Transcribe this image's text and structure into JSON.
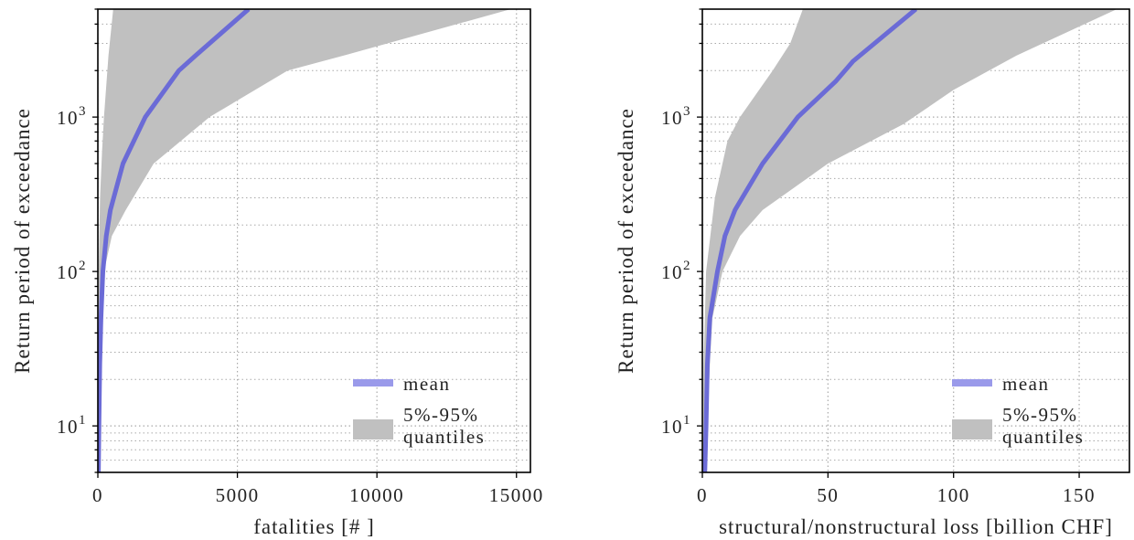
{
  "colors": {
    "mean_line": "#6b6bd6",
    "legend_mean": "#9a9aea",
    "quantile_band": "#c0c0c0"
  },
  "chart_data": [
    {
      "type": "area",
      "title": "",
      "xlabel": "fatalities [# ]",
      "ylabel": "Return period of exceedance",
      "xlim": [
        0,
        15500
      ],
      "ylim": [
        5,
        5000
      ],
      "yscale": "log",
      "grid": true,
      "legend_position": "lower-right",
      "x_ticks": [
        0,
        5000,
        10000,
        15000
      ],
      "x_tick_labels": [
        "0",
        "5000",
        "10000",
        "15000"
      ],
      "y_ticks": [
        10,
        100,
        1000
      ],
      "y_tick_labels": [
        "10",
        "10",
        "10"
      ],
      "y_tick_exponents": [
        "1",
        "2",
        "3"
      ],
      "series": [
        {
          "name": "mean",
          "kind": "line",
          "points": [
            [
              20,
              5
            ],
            [
              40,
              10
            ],
            [
              70,
              25
            ],
            [
              110,
              50
            ],
            [
              180,
              100
            ],
            [
              300,
              170
            ],
            [
              450,
              250
            ],
            [
              900,
              500
            ],
            [
              1700,
              1000
            ],
            [
              2900,
              2000
            ],
            [
              3500,
              2500
            ],
            [
              5400,
              5000
            ]
          ]
        },
        {
          "name": "5%-95% quantiles",
          "kind": "band",
          "upper": [
            [
              0,
              5
            ],
            [
              10,
              25
            ],
            [
              30,
              100
            ],
            [
              80,
              300
            ],
            [
              150,
              600
            ],
            [
              220,
              1000
            ],
            [
              380,
              2500
            ],
            [
              550,
              5000
            ]
          ],
          "lower": [
            [
              30,
              5
            ],
            [
              60,
              10
            ],
            [
              100,
              25
            ],
            [
              140,
              50
            ],
            [
              220,
              100
            ],
            [
              500,
              170
            ],
            [
              1000,
              250
            ],
            [
              2000,
              500
            ],
            [
              4000,
              1000
            ],
            [
              6800,
              2000
            ],
            [
              8800,
              2500
            ],
            [
              14800,
              5000
            ]
          ]
        }
      ]
    },
    {
      "type": "area",
      "title": "",
      "xlabel": "structural/nonstructural loss [billion CHF]",
      "ylabel": "Return period of exceedance",
      "xlim": [
        0,
        170
      ],
      "ylim": [
        5,
        5000
      ],
      "yscale": "log",
      "grid": true,
      "legend_position": "lower-right",
      "x_ticks": [
        0,
        50,
        100,
        150
      ],
      "x_tick_labels": [
        "0",
        "50",
        "100",
        "150"
      ],
      "y_ticks": [
        10,
        100,
        1000
      ],
      "y_tick_labels": [
        "10",
        "10",
        "10"
      ],
      "y_tick_exponents": [
        "1",
        "2",
        "3"
      ],
      "series": [
        {
          "name": "mean",
          "kind": "line",
          "points": [
            [
              1,
              5
            ],
            [
              1.5,
              10
            ],
            [
              2,
              25
            ],
            [
              3,
              50
            ],
            [
              6,
              100
            ],
            [
              9,
              170
            ],
            [
              13,
              250
            ],
            [
              24,
              500
            ],
            [
              38,
              1000
            ],
            [
              53,
              1700
            ],
            [
              60,
              2300
            ],
            [
              85,
              5000
            ]
          ]
        },
        {
          "name": "5%-95% quantiles",
          "kind": "band",
          "upper": [
            [
              0,
              5
            ],
            [
              0.5,
              25
            ],
            [
              1.5,
              100
            ],
            [
              5,
              300
            ],
            [
              10,
              700
            ],
            [
              15,
              1000
            ],
            [
              28,
              2000
            ],
            [
              35,
              3000
            ],
            [
              40,
              5000
            ]
          ],
          "lower": [
            [
              1.5,
              5
            ],
            [
              2,
              10
            ],
            [
              3,
              25
            ],
            [
              4,
              50
            ],
            [
              8,
              100
            ],
            [
              15,
              170
            ],
            [
              24,
              250
            ],
            [
              50,
              500
            ],
            [
              80,
              900
            ],
            [
              100,
              1500
            ],
            [
              125,
              2500
            ],
            [
              165,
              5000
            ]
          ]
        }
      ]
    }
  ]
}
